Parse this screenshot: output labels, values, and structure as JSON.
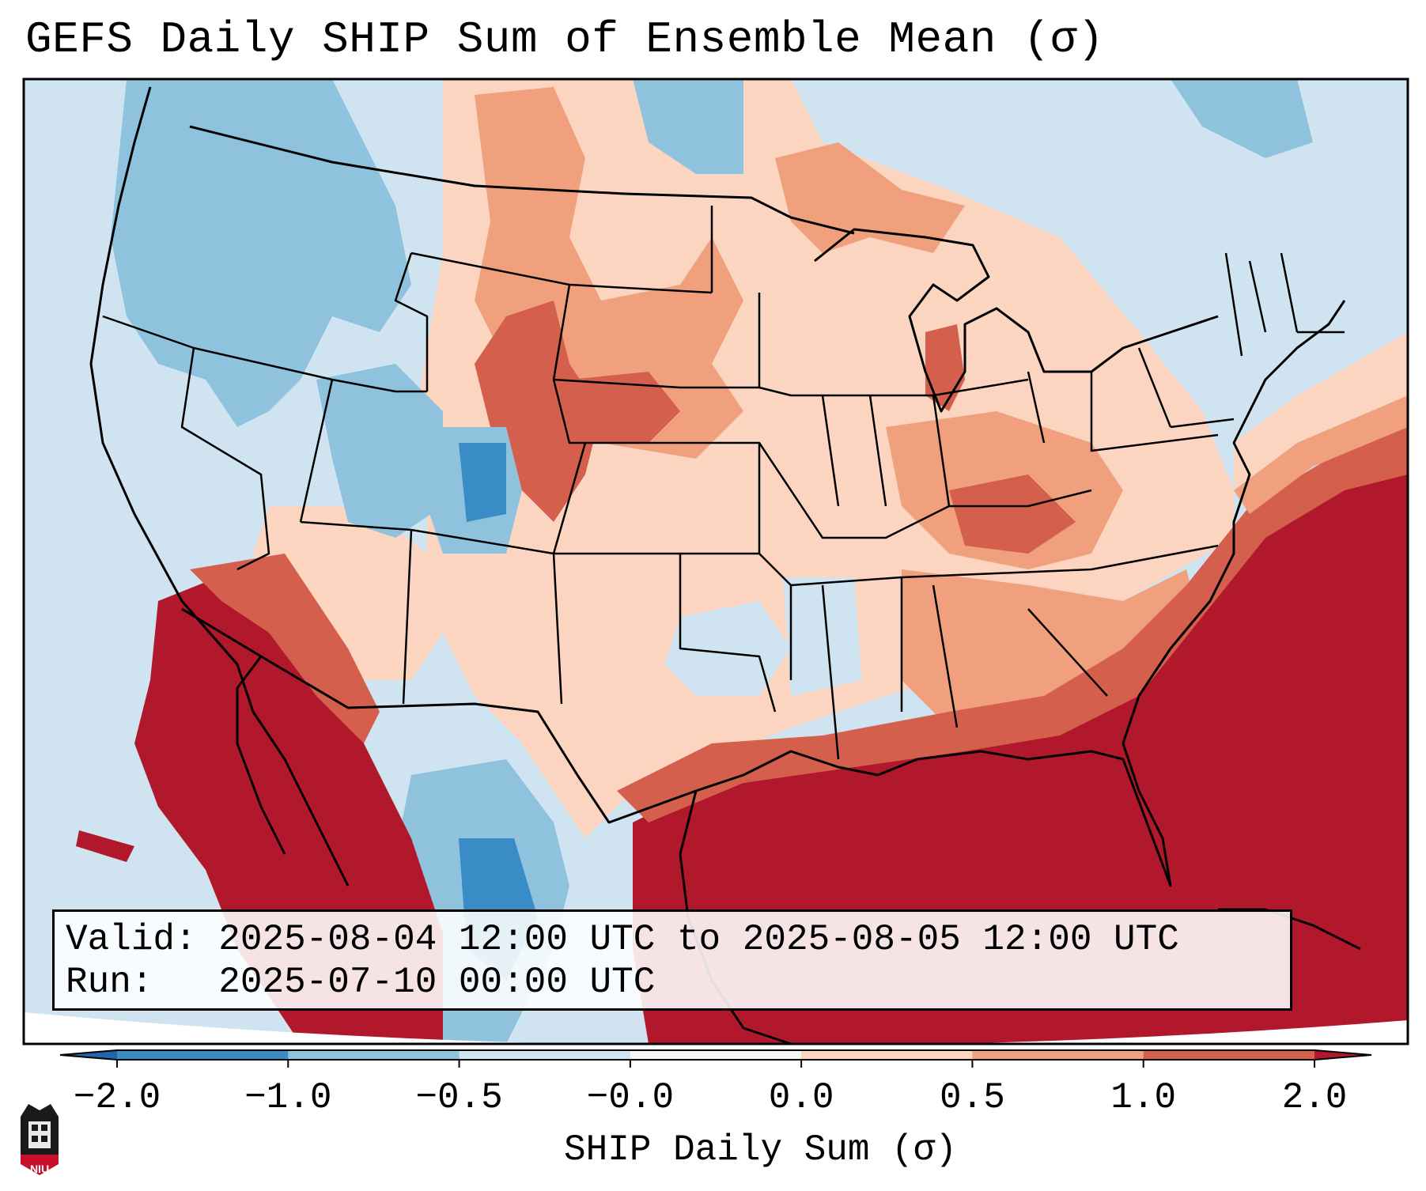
{
  "title": "GEFS Daily SHIP Sum of Ensemble Mean (σ)",
  "info": {
    "valid_label": "Valid:",
    "valid_value": "2025-08-04 12:00 UTC to 2025-08-05 12:00 UTC",
    "run_label": "Run:",
    "run_value": "2025-07-10 00:00 UTC"
  },
  "colorbar": {
    "label": "SHIP Daily Sum (σ)",
    "ticks": [
      "−2.0",
      "−1.0",
      "−0.5",
      "−0.0",
      "0.0",
      "0.5",
      "1.0",
      "2.0"
    ],
    "bins": [
      {
        "range": "−2.0 to −1.0",
        "color": "#3a8cc6"
      },
      {
        "range": "−1.0 to −0.5",
        "color": "#8fc3dd"
      },
      {
        "range": "−0.5 to −0.0",
        "color": "#cfe4f0"
      },
      {
        "range": "−0.0 to 0.0",
        "color": "#f7f7f7"
      },
      {
        "range": "0.0 to 0.5",
        "color": "#fbd5c0"
      },
      {
        "range": "0.5 to 1.0",
        "color": "#f0a07c"
      },
      {
        "range": "1.0 to 2.0",
        "color": "#d45f4c"
      }
    ],
    "under_color": "#2166ac",
    "over_color": "#b2182b"
  },
  "map_regions": [
    {
      "name": "Pacific Northwest",
      "category": "-0.5 to -1.0"
    },
    {
      "name": "Southwest / Desert SW",
      "category": "> 2.0"
    },
    {
      "name": "Colorado",
      "category": "-1.0 to -2.0"
    },
    {
      "name": "Northern / Central Plains",
      "category": "0.5 to 2.0"
    },
    {
      "name": "Ohio Valley / Southeast",
      "category": "0.5 to 2.0"
    },
    {
      "name": "Gulf of Mexico / Atlantic",
      "category": "> 2.0"
    },
    {
      "name": "New England / Canada",
      "category": "-0.5 to 0.0"
    }
  ],
  "logo": {
    "text": "NIU"
  }
}
